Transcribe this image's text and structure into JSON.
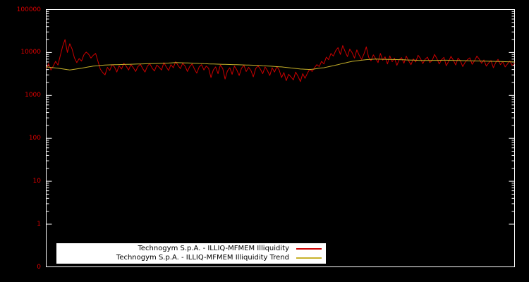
{
  "chart": {
    "background": "#000000",
    "frame_color": "#ffffff",
    "tick_label_color": "#dd0000",
    "y_tick_labels": [
      "100000",
      "10000",
      "1000",
      "100",
      "10",
      "1",
      "0"
    ]
  },
  "chart_data": {
    "type": "line",
    "title": "",
    "xlabel": "",
    "ylabel": "",
    "y_scale": "log",
    "ylim": [
      1,
      100000
    ],
    "y_ticks": [
      100000,
      10000,
      1000,
      100,
      10,
      1,
      0
    ],
    "x_tick_labels": [],
    "grid": false,
    "legend_position": "bottom-center",
    "series": [
      {
        "name": "Technogym S.p.A. - ILLIQ-MFMEM Illiquidity",
        "color": "#cc0000",
        "values": [
          4200,
          5500,
          3900,
          4800,
          6200,
          5100,
          8500,
          14000,
          20000,
          10000,
          16000,
          12000,
          7500,
          5800,
          7200,
          6300,
          8800,
          10200,
          9100,
          7400,
          8600,
          9500,
          6200,
          4100,
          3400,
          3000,
          4500,
          3800,
          5200,
          4600,
          3500,
          4900,
          4100,
          5600,
          4800,
          3900,
          5200,
          4400,
          3600,
          4700,
          5300,
          4200,
          3500,
          4800,
          5500,
          4300,
          3700,
          5100,
          4500,
          3900,
          5800,
          4600,
          3800,
          5200,
          4400,
          6100,
          5000,
          4200,
          5600,
          4800,
          3600,
          4700,
          5400,
          4100,
          3300,
          4600,
          5200,
          3900,
          4800,
          4300,
          2600,
          3900,
          4600,
          3200,
          5100,
          4200,
          2400,
          3700,
          4400,
          3100,
          4800,
          3900,
          2900,
          4300,
          5000,
          3600,
          4500,
          3800,
          2700,
          4200,
          4900,
          4100,
          3200,
          4600,
          3800,
          2900,
          4400,
          3500,
          4700,
          3900,
          2600,
          3400,
          2200,
          3100,
          2700,
          2300,
          3500,
          2800,
          2100,
          3200,
          2500,
          3300,
          4100,
          3600,
          4400,
          5200,
          4700,
          6200,
          5400,
          7800,
          6800,
          9500,
          8200,
          11000,
          13000,
          9000,
          14500,
          10500,
          8000,
          12000,
          9800,
          7400,
          11500,
          8600,
          6900,
          9200,
          13500,
          7800,
          6400,
          8800,
          7200,
          5800,
          9500,
          6600,
          7900,
          5400,
          8300,
          6100,
          7400,
          5000,
          6800,
          7600,
          5600,
          8200,
          6400,
          5200,
          7100,
          6000,
          8600,
          7300,
          5500,
          6900,
          7800,
          5800,
          6500,
          9000,
          7200,
          5400,
          6800,
          7700,
          4900,
          6200,
          8100,
          6600,
          5100,
          7400,
          6300,
          4700,
          5900,
          6800,
          7500,
          5300,
          6400,
          8200,
          7000,
          5600,
          6700,
          4800,
          5700,
          6500,
          4400,
          5800,
          6900,
          5200,
          6100,
          4600,
          5400,
          6300,
          5000,
          5700
        ]
      },
      {
        "name": "Technogym S.p.A. - ILLIQ-MFMEM Illiquidity Trend",
        "color": "#c8b22a",
        "values": [
          4600,
          4540,
          4480,
          4420,
          4360,
          4300,
          4220,
          4140,
          4060,
          3980,
          3900,
          3980,
          4060,
          4140,
          4220,
          4300,
          4400,
          4500,
          4600,
          4700,
          4800,
          4860,
          4920,
          4980,
          5040,
          5100,
          5120,
          5140,
          5160,
          5180,
          5200,
          5220,
          5240,
          5260,
          5280,
          5300,
          5320,
          5340,
          5360,
          5380,
          5400,
          5420,
          5440,
          5460,
          5480,
          5500,
          5520,
          5540,
          5560,
          5580,
          5600,
          5640,
          5680,
          5720,
          5760,
          5800,
          5780,
          5760,
          5740,
          5720,
          5700,
          5670,
          5640,
          5610,
          5580,
          5550,
          5520,
          5490,
          5460,
          5430,
          5400,
          5380,
          5360,
          5340,
          5320,
          5300,
          5280,
          5260,
          5240,
          5220,
          5200,
          5180,
          5160,
          5140,
          5120,
          5100,
          5080,
          5060,
          5040,
          5020,
          5000,
          4960,
          4920,
          4880,
          4840,
          4800,
          4760,
          4720,
          4680,
          4640,
          4600,
          4540,
          4480,
          4420,
          4360,
          4300,
          4240,
          4180,
          4120,
          4100,
          4060,
          4030,
          4000,
          4060,
          4120,
          4200,
          4300,
          4350,
          4400,
          4530,
          4660,
          4790,
          4920,
          5060,
          5200,
          5370,
          5540,
          5700,
          5870,
          6030,
          6200,
          6300,
          6400,
          6500,
          6600,
          6700,
          6800,
          6850,
          6900,
          6950,
          7000,
          6980,
          6960,
          6940,
          6920,
          6900,
          6880,
          6860,
          6840,
          6820,
          6800,
          6770,
          6740,
          6710,
          6680,
          6650,
          6620,
          6590,
          6560,
          6530,
          6500,
          6510,
          6520,
          6530,
          6540,
          6550,
          6560,
          6570,
          6580,
          6590,
          6600,
          6580,
          6560,
          6540,
          6520,
          6500,
          6480,
          6460,
          6440,
          6420,
          6400,
          6380,
          6360,
          6340,
          6320,
          6300,
          6280,
          6260,
          6240,
          6220,
          6200,
          6180,
          6160,
          6140,
          6120,
          6100,
          6080,
          6060,
          6040,
          6000
        ]
      }
    ]
  }
}
